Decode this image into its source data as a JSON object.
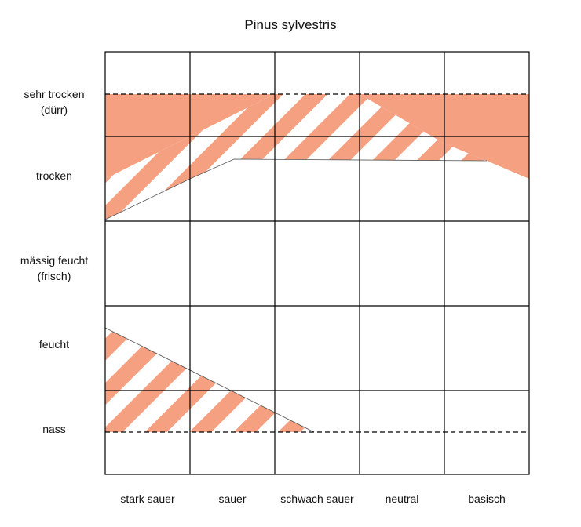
{
  "title": "Pinus sylvestris",
  "colors": {
    "fill": "#f4a081",
    "grid": "#000000",
    "background": "#ffffff"
  },
  "rows": [
    {
      "lines": [
        "sehr trocken",
        "(dürr)"
      ]
    },
    {
      "lines": [
        "trocken"
      ]
    },
    {
      "lines": [
        "mässig feucht",
        "(frisch)"
      ]
    },
    {
      "lines": [
        "feucht"
      ]
    },
    {
      "lines": [
        "nass"
      ]
    }
  ],
  "columns": [
    "stark sauer",
    "sauer",
    "schwach sauer",
    "neutral",
    "basisch"
  ]
}
